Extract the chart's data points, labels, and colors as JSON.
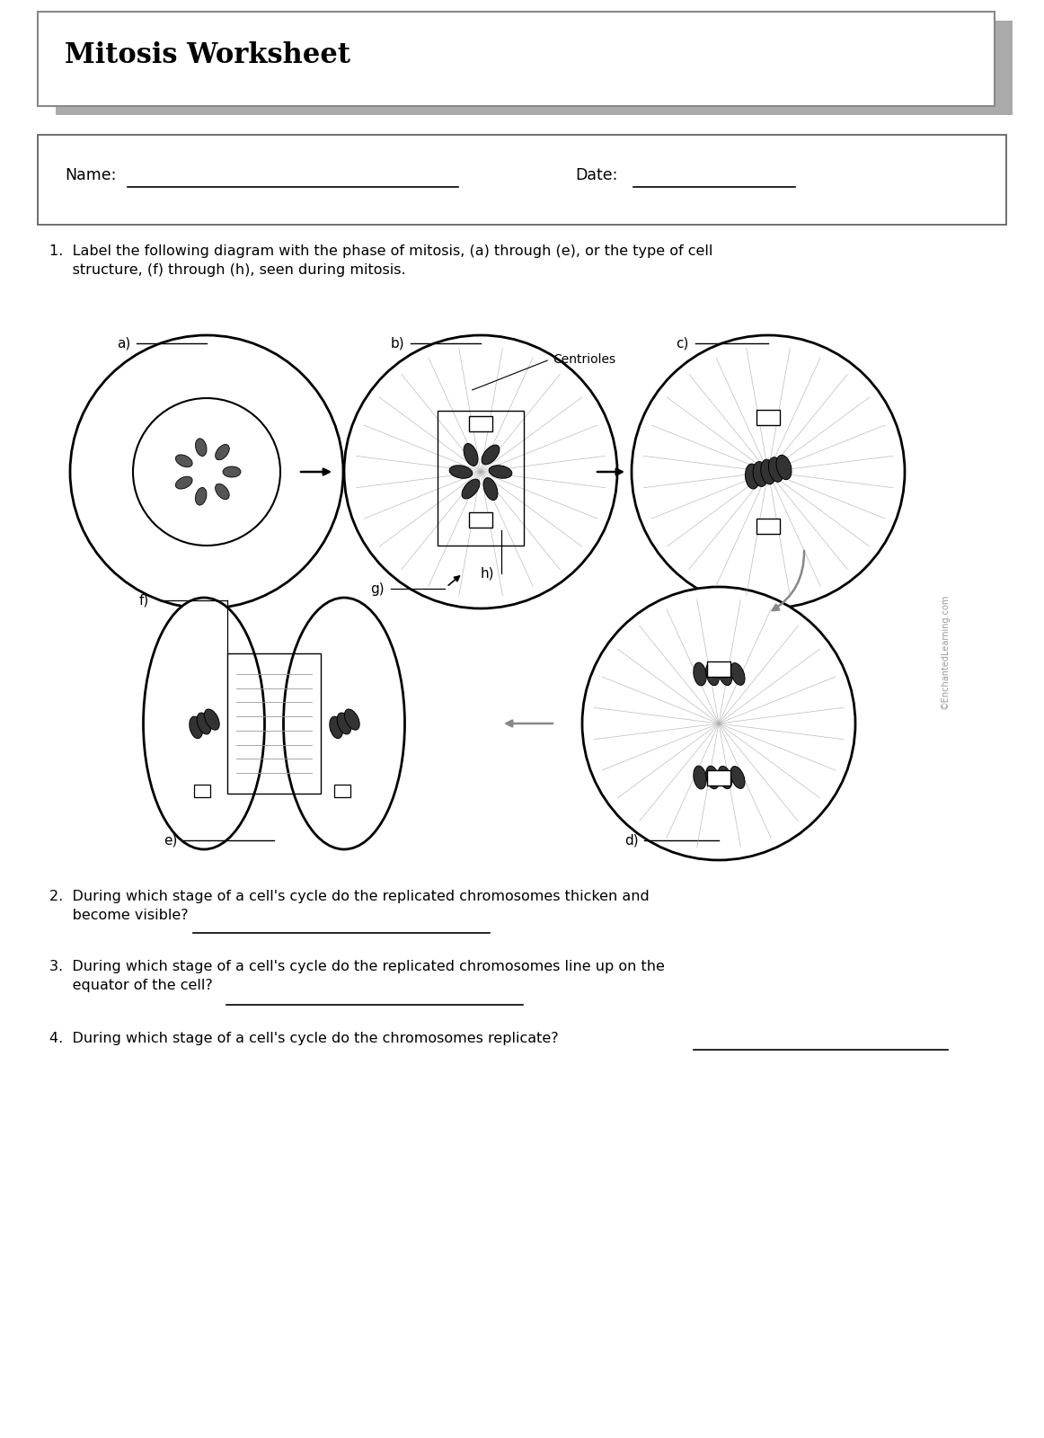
{
  "title": "Mitosis Worksheet",
  "bg_color": "#ffffff",
  "name_label": "Name:",
  "date_label": "Date:",
  "q1_text": "1.  Label the following diagram with the phase of mitosis, (a) through (e), or the type of cell\n     structure, (f) through (h), seen during mitosis.",
  "q2_text": "2.  During which stage of a cell's cycle do the replicated chromosomes thicken and\n     become visible?",
  "q3_text": "3.  During which stage of a cell's cycle do the replicated chromosomes line up on the\n     equator of the cell?",
  "q4_text": "4.  During which stage of a cell's cycle do the chromosomes replicate?",
  "copyright": "©EnchantedLearning.com",
  "label_a": "a)",
  "label_b": "b)",
  "label_c": "c)",
  "label_d": "d)",
  "label_e": "e)",
  "label_f": "f)",
  "label_g": "g)",
  "label_h": "h)",
  "centrioles_label": "Centrioles"
}
